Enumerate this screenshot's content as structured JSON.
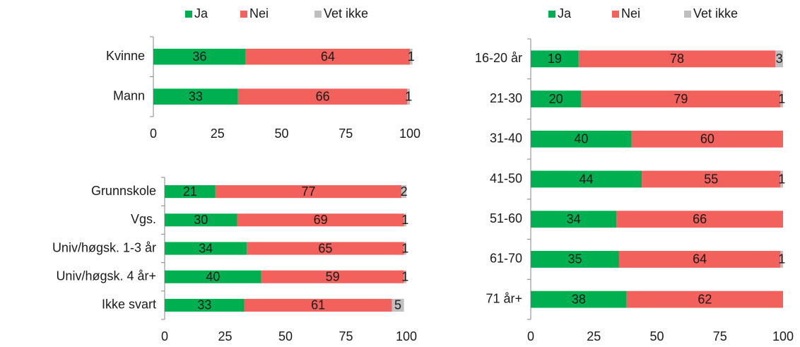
{
  "chart_data": [
    {
      "type": "bar",
      "orientation": "horizontal",
      "stacked": true,
      "legend": "top",
      "categories": [
        "Kvinne",
        "Mann"
      ],
      "series": [
        {
          "name": "Ja",
          "color": "#00b050",
          "values": [
            36,
            33
          ]
        },
        {
          "name": "Nei",
          "color": "#f2615b",
          "values": [
            64,
            66
          ]
        },
        {
          "name": "Vet ikke",
          "color": "#bfbfbf",
          "values": [
            1,
            1
          ]
        }
      ],
      "xlim": [
        0,
        100
      ],
      "xticks": [
        0,
        25,
        50,
        75,
        100
      ]
    },
    {
      "type": "bar",
      "orientation": "horizontal",
      "stacked": true,
      "categories": [
        "Grunnskole",
        "Vgs.",
        "Univ/høgsk. 1-3 år",
        "Univ/høgsk. 4 år+",
        "Ikke svart"
      ],
      "series": [
        {
          "color": "#00b050",
          "values": [
            21,
            30,
            34,
            40,
            33
          ]
        },
        {
          "color": "#f2615b",
          "values": [
            77,
            69,
            65,
            59,
            61
          ]
        },
        {
          "color": "#bfbfbf",
          "values": [
            2,
            1,
            1,
            1,
            5
          ]
        }
      ],
      "xlim": [
        0,
        100
      ],
      "xticks": [
        0,
        25,
        50,
        75,
        100
      ]
    },
    {
      "type": "bar",
      "orientation": "horizontal",
      "stacked": true,
      "legend": "top",
      "categories": [
        "16-20 år",
        "21-30",
        "31-40",
        "41-50",
        "51-60",
        "61-70",
        "71 år+"
      ],
      "series": [
        {
          "name": "Ja",
          "color": "#00b050",
          "values": [
            19,
            20,
            40,
            44,
            34,
            35,
            38
          ]
        },
        {
          "name": "Nei",
          "color": "#f2615b",
          "values": [
            78,
            79,
            60,
            55,
            66,
            64,
            62
          ]
        },
        {
          "name": "Vet ikke",
          "color": "#bfbfbf",
          "values": [
            3,
            1,
            null,
            1,
            null,
            1,
            null
          ]
        }
      ],
      "xlim": [
        0,
        100
      ],
      "xticks": [
        0,
        25,
        50,
        75,
        100
      ]
    }
  ]
}
